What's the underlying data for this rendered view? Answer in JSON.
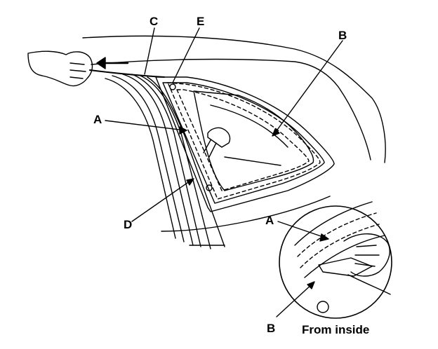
{
  "figure": {
    "callouts": {
      "c": "C",
      "e": "E",
      "b_top": "B",
      "a_left": "A",
      "d": "D",
      "a_inset": "A",
      "b_inset": "B"
    },
    "inset_caption": "From inside",
    "arrow_direction": "left",
    "colors": {
      "line": "#000000",
      "background": "#ffffff"
    }
  }
}
